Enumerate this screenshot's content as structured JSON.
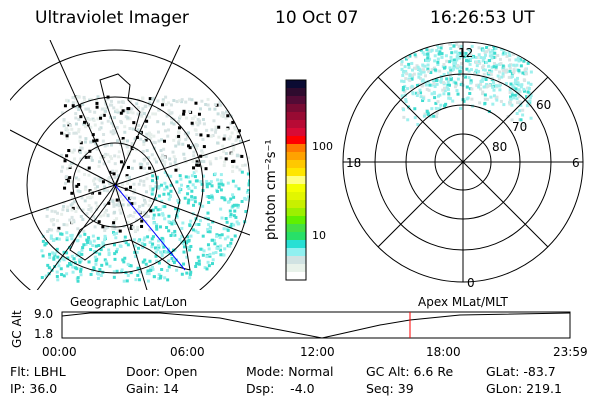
{
  "header": {
    "instrument": "Ultraviolet Imager",
    "date": "10 Oct 07",
    "time": "16:26:53 UT"
  },
  "colorbar": {
    "label": "photon cm⁻²s⁻¹",
    "ticks": [
      "100",
      "10"
    ],
    "colors": [
      "#0b0b33",
      "#2e0b2e",
      "#520b35",
      "#780b33",
      "#980b33",
      "#b80b35",
      "#d80b35",
      "#ff0000",
      "#ff7a00",
      "#ffa200",
      "#ffc800",
      "#ffe600",
      "#ffff80",
      "#f4ff00",
      "#e2f600",
      "#c8f000",
      "#9cf000",
      "#60f000",
      "#44e044",
      "#28e068",
      "#28e0d4",
      "#90f0f0",
      "#d0e2e2",
      "#e8f2ea",
      "#ffffff"
    ]
  },
  "polar": {
    "mlt_labels": {
      "top": "12",
      "left": "18",
      "right": "6",
      "bottom": "0"
    },
    "lat_labels": [
      "60",
      "70",
      "80"
    ]
  },
  "timeline": {
    "left_title": "Geographic Lat/Lon",
    "right_title": "Apex MLat/MLT",
    "ylabel": "GC Alt",
    "y_ticks": [
      "9.0",
      "1.8"
    ],
    "x_ticks": [
      "00:00",
      "06:00",
      "12:00",
      "18:00",
      "23:59"
    ],
    "current_marker": "16:26:53",
    "marker_color": "#ff0000"
  },
  "status": {
    "flt": "Flt: LBHL",
    "ip": "IP: 36.0",
    "door": "Door: Open",
    "gain": "Gain: 14",
    "mode": "Mode: Normal",
    "dsp": "Dsp:    -4.0",
    "gcalt": "GC Alt: 6.6 Re",
    "seq": "Seq: 39",
    "glat": "GLat: -83.7",
    "glon": "GLon: 219.1"
  }
}
